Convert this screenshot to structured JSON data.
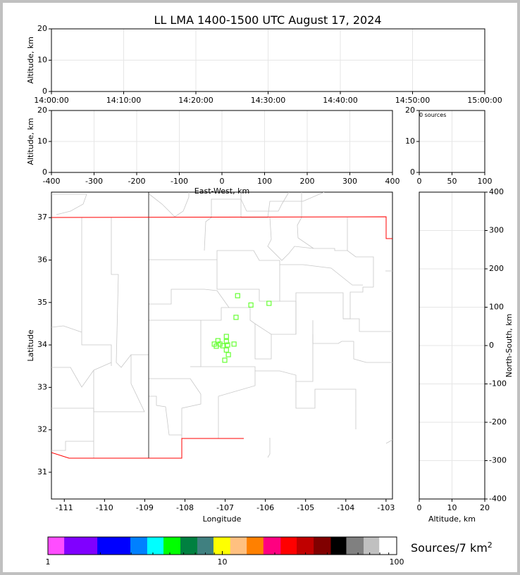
{
  "title": "LL LMA 1400-1500 UTC August 17, 2024",
  "chart_data": [
    {
      "id": "altitude-time",
      "type": "scatter",
      "ylabel": "Altitude, km",
      "xlim": [
        "14:00:00",
        "15:00:00"
      ],
      "ylim": [
        0,
        20
      ],
      "xticks": [
        "14:00:00",
        "14:10:00",
        "14:20:00",
        "14:30:00",
        "14:40:00",
        "14:50:00",
        "15:00:00"
      ],
      "yticks": [
        "0",
        "10",
        "20"
      ],
      "grid": true,
      "points": []
    },
    {
      "id": "altitude-eastwest",
      "type": "scatter",
      "xlabel": "East-West, km",
      "ylabel": "Altitude, km",
      "xlim": [
        -400,
        400
      ],
      "ylim": [
        0,
        20
      ],
      "xticks": [
        "-400",
        "-300",
        "-200",
        "-100",
        "0",
        "100",
        "200",
        "300",
        "400"
      ],
      "yticks": [
        "0",
        "10",
        "20"
      ],
      "grid": true,
      "points": []
    },
    {
      "id": "histogram",
      "type": "bar",
      "annotation": "0 sources",
      "xlim": [
        0,
        100
      ],
      "ylim": [
        0,
        20
      ],
      "xticks": [
        "0",
        "50",
        "100"
      ],
      "yticks": [
        "0",
        "10",
        "20"
      ],
      "grid": true
    },
    {
      "id": "plan-view",
      "type": "scatter",
      "xlabel": "Longitude",
      "ylabel": "Latitude",
      "xlim": [
        -111.32,
        -102.84
      ],
      "ylim": [
        30.37,
        37.6
      ],
      "xticks": [
        -111,
        -110,
        -109,
        -108,
        -107,
        -106,
        -105,
        -104,
        -103
      ],
      "yticks": [
        31,
        32,
        33,
        34,
        35,
        36,
        37
      ],
      "grid": false,
      "marker_color": "#66ff33",
      "points": [
        {
          "lon": -106.69,
          "lat": 35.16
        },
        {
          "lon": -106.36,
          "lat": 34.94
        },
        {
          "lon": -105.91,
          "lat": 34.98
        },
        {
          "lon": -106.73,
          "lat": 34.65
        },
        {
          "lon": -106.97,
          "lat": 34.2
        },
        {
          "lon": -107.18,
          "lat": 34.1
        },
        {
          "lon": -106.97,
          "lat": 34.08
        },
        {
          "lon": -107.27,
          "lat": 34.02
        },
        {
          "lon": -107.22,
          "lat": 33.97
        },
        {
          "lon": -107.13,
          "lat": 34.02
        },
        {
          "lon": -107.06,
          "lat": 33.98
        },
        {
          "lon": -106.94,
          "lat": 34.0
        },
        {
          "lon": -106.78,
          "lat": 34.02
        },
        {
          "lon": -106.97,
          "lat": 33.88
        },
        {
          "lon": -106.92,
          "lat": 33.77
        },
        {
          "lon": -107.01,
          "lat": 33.64
        }
      ]
    },
    {
      "id": "altitude-northsouth",
      "type": "scatter",
      "xlabel": "Altitude, km",
      "ylabel": "North-South, km",
      "xlim": [
        0,
        20
      ],
      "ylim": [
        -400,
        400
      ],
      "xticks": [
        "0",
        "10",
        "20"
      ],
      "yticks": [
        "-400",
        "-300",
        "-200",
        "-100",
        "0",
        "100",
        "200",
        "300",
        "400"
      ],
      "grid": true,
      "points": []
    }
  ],
  "colorbar": {
    "label": "Sources/7 km",
    "label_sup": "2",
    "scale": "log",
    "range": [
      1,
      100
    ],
    "ticks": [
      "1",
      "10",
      "100"
    ],
    "bounds": [
      1,
      1.24,
      1.92,
      2.97,
      3.71,
      4.6,
      5.75,
      7.19,
      8.9,
      11.1,
      13.8,
      17.2,
      21.6,
      26.7,
      33.4,
      41.9,
      51.4,
      64.6,
      79.4,
      100
    ],
    "colors": [
      "#ff4dff",
      "#8000ff",
      "#0000ff",
      "#0080ff",
      "#00ffff",
      "#00ff00",
      "#008040",
      "#408080",
      "#ffff00",
      "#ffc080",
      "#ff8000",
      "#ff0080",
      "#ff0000",
      "#c00000",
      "#800000",
      "#000000",
      "#808080",
      "#c0c0c0",
      "#ffffff"
    ]
  }
}
